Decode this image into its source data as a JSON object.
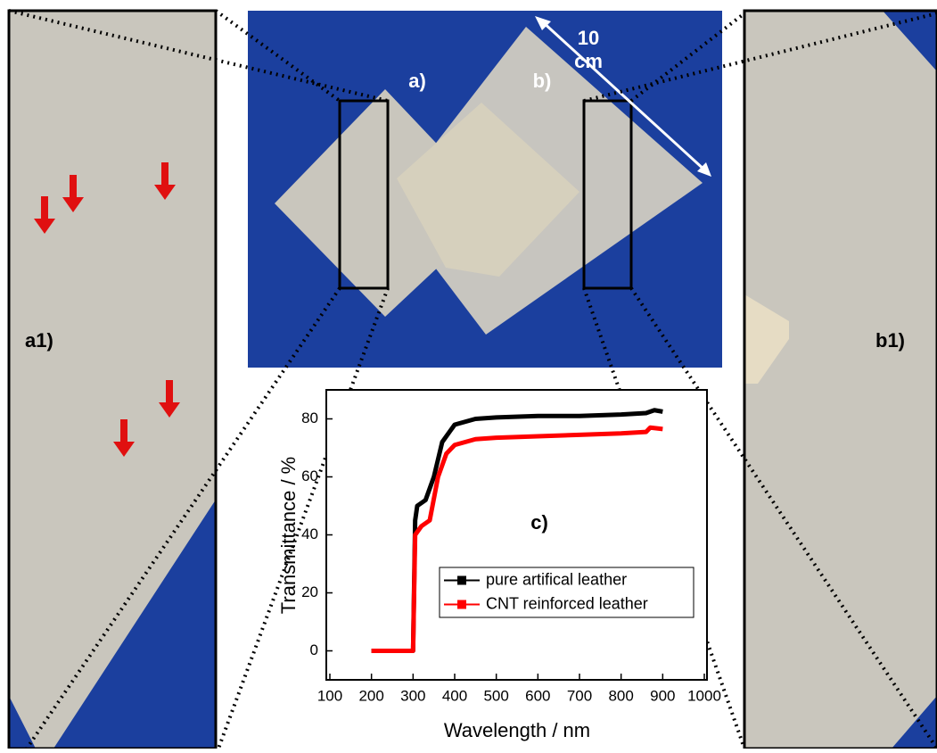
{
  "photo_labels": {
    "a": "a)",
    "b": "b)",
    "scale_lines": [
      "10",
      "cm"
    ],
    "a1": "a1)",
    "b1": "b1)"
  },
  "chart_data": {
    "type": "line",
    "annotation": "c)",
    "x_label": "Wavelength / nm",
    "y_label": "Transmittance / %",
    "xlim": [
      100,
      1000
    ],
    "ylim": [
      -10,
      90
    ],
    "xticks": [
      100,
      200,
      300,
      400,
      500,
      600,
      700,
      800,
      900,
      1000
    ],
    "yticks": [
      0,
      20,
      40,
      60,
      80
    ],
    "legend": "bottom-right",
    "series": [
      {
        "name": "pure artifical leather",
        "color": "#000000",
        "x": [
          200,
          250,
          300,
          305,
          310,
          330,
          350,
          370,
          400,
          450,
          500,
          600,
          700,
          800,
          860,
          880,
          900
        ],
        "values": [
          0,
          0,
          0,
          45,
          50,
          52,
          60,
          72,
          78,
          80,
          80.5,
          81,
          81,
          81.5,
          82,
          83,
          82.5
        ]
      },
      {
        "name": "CNT reinforced leather",
        "color": "#ff0000",
        "x": [
          200,
          250,
          300,
          305,
          320,
          340,
          360,
          380,
          400,
          450,
          500,
          600,
          700,
          800,
          860,
          870,
          900
        ],
        "values": [
          0,
          0,
          0,
          40,
          43,
          45,
          60,
          68,
          71,
          73,
          73.5,
          74,
          74.5,
          75,
          75.5,
          77,
          76.5
        ]
      }
    ]
  }
}
